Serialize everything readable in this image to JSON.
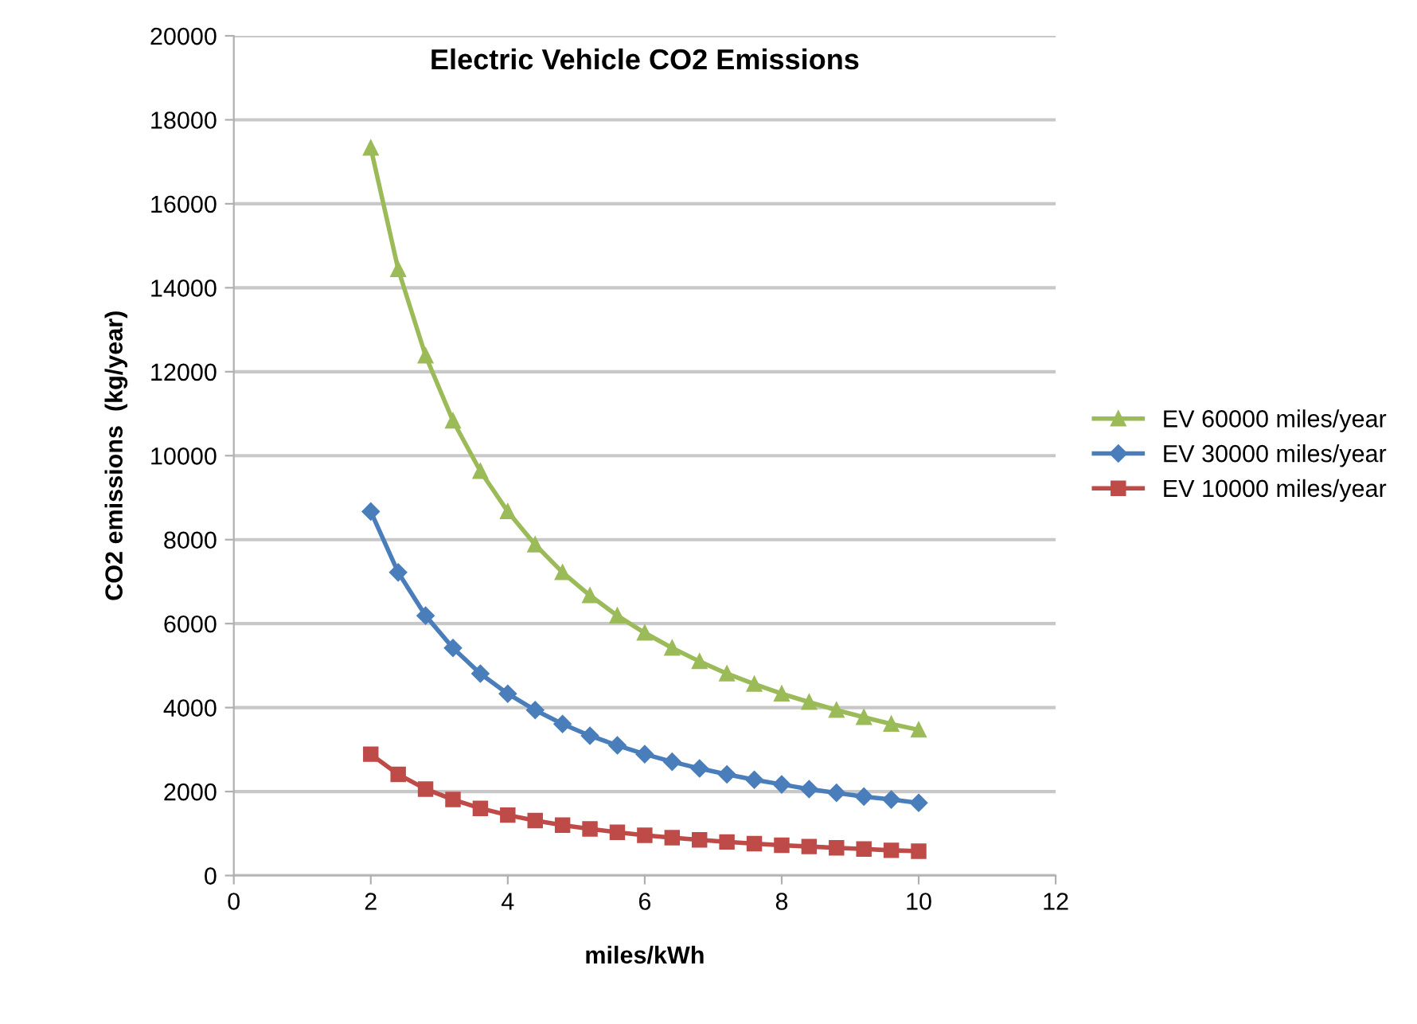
{
  "chart_data": {
    "type": "line",
    "title": "Electric Vehicle CO2 Emissions",
    "xlabel": "miles/kWh",
    "ylabel": "CO2 emissions  (kg/year)",
    "x": [
      2,
      2.4,
      2.8,
      3.2,
      3.6,
      4,
      4.4,
      4.8,
      5.2,
      5.6,
      6,
      6.4,
      6.8,
      7.2,
      7.6,
      8,
      8.4,
      8.8,
      9.2,
      9.6,
      10
    ],
    "series": [
      {
        "name": "EV 60000 miles/year",
        "color": "#9bbb59",
        "marker": "triangle",
        "values": [
          17330,
          14440,
          12380,
          10830,
          9630,
          8670,
          7880,
          7220,
          6670,
          6190,
          5780,
          5420,
          5100,
          4810,
          4560,
          4330,
          4130,
          3940,
          3770,
          3610,
          3470
        ]
      },
      {
        "name": "EV 30000 miles/year",
        "color": "#4a7ebb",
        "marker": "diamond",
        "values": [
          8670,
          7220,
          6190,
          5420,
          4810,
          4330,
          3940,
          3610,
          3330,
          3100,
          2890,
          2710,
          2550,
          2410,
          2280,
          2170,
          2060,
          1970,
          1880,
          1810,
          1730
        ]
      },
      {
        "name": "EV 10000 miles/year",
        "color": "#be4b48",
        "marker": "square",
        "values": [
          2890,
          2410,
          2060,
          1810,
          1600,
          1440,
          1310,
          1200,
          1110,
          1030,
          960,
          900,
          850,
          800,
          760,
          720,
          690,
          660,
          630,
          600,
          580
        ]
      }
    ],
    "xlim": [
      0,
      12
    ],
    "xticks": [
      0,
      2,
      4,
      6,
      8,
      10,
      12
    ],
    "ylim": [
      0,
      20000
    ],
    "yticks": [
      0,
      2000,
      4000,
      6000,
      8000,
      10000,
      12000,
      14000,
      16000,
      18000,
      20000
    ],
    "grid": "y",
    "legend": "right",
    "line_style": "solid"
  }
}
